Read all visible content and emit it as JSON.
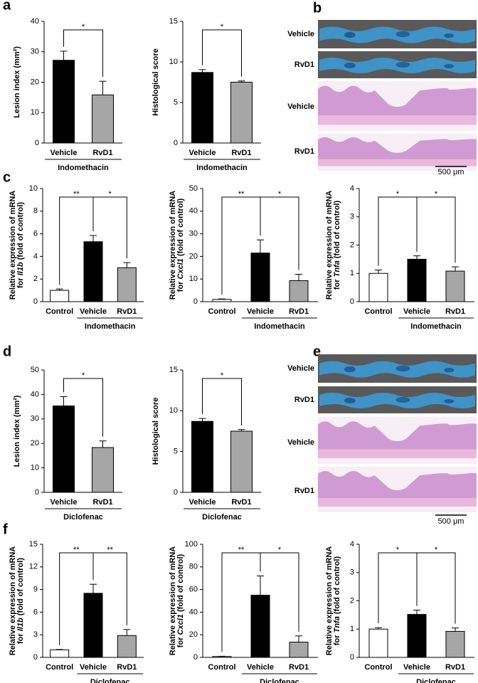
{
  "panel_labels": [
    "a",
    "b",
    "c",
    "d",
    "e",
    "f"
  ],
  "images": [
    {
      "labels": [
        "Vehicle",
        "RvD1",
        "Vehicle",
        "RvD1"
      ],
      "scale_bar": "500 μm"
    },
    {
      "labels": [
        "Vehicle",
        "RvD1",
        "Vehicle",
        "RvD1"
      ],
      "scale_bar": "500 μm"
    }
  ],
  "chart_data": [
    {
      "type": "bar",
      "ylabel": "Lesion index (mm²)",
      "categories": [
        "Vehicle",
        "RvD1"
      ],
      "values": [
        27.2,
        15.8
      ],
      "errors": [
        3.0,
        4.5
      ],
      "colors": [
        "#000000",
        "#a6a6a6"
      ],
      "ylim": [
        0,
        40
      ],
      "yticks": [
        0,
        10,
        20,
        30,
        40
      ],
      "group_label": "Indomethacin",
      "annotations": [
        {
          "between": [
            "Vehicle",
            "RvD1"
          ],
          "text": "*"
        }
      ]
    },
    {
      "type": "bar",
      "ylabel": "Histological score",
      "categories": [
        "Vehicle",
        "RvD1"
      ],
      "values": [
        8.7,
        7.5
      ],
      "errors": [
        0.35,
        0.15
      ],
      "colors": [
        "#000000",
        "#a6a6a6"
      ],
      "ylim": [
        0,
        15
      ],
      "yticks": [
        0,
        5,
        10,
        15
      ],
      "group_label": "Indomethacin",
      "annotations": [
        {
          "between": [
            "Vehicle",
            "RvD1"
          ],
          "text": "*"
        }
      ]
    },
    {
      "type": "bar",
      "ylabel": "Relative expression of  mRNA",
      "ylabel2": [
        "for ",
        "Il1b",
        " (fold of control)"
      ],
      "categories": [
        "Control",
        "Vehicle",
        "RvD1"
      ],
      "values": [
        1.0,
        5.3,
        3.0
      ],
      "errors": [
        0.12,
        0.55,
        0.45
      ],
      "colors": [
        "#ffffff",
        "#000000",
        "#a6a6a6"
      ],
      "ylim": [
        0,
        10
      ],
      "yticks": [
        0,
        2,
        4,
        6,
        8,
        10
      ],
      "group_label": "Indomethacin",
      "annotations": [
        {
          "between": [
            "Control",
            "Vehicle"
          ],
          "text": "**"
        },
        {
          "between": [
            "Vehicle",
            "RvD1"
          ],
          "text": "*"
        }
      ]
    },
    {
      "type": "bar",
      "ylabel": "Relative expression of  mRNA",
      "ylabel2": [
        "for ",
        "Cxcl1",
        " (fold of control)"
      ],
      "categories": [
        "Control",
        "Vehicle",
        "RvD1"
      ],
      "values": [
        1.0,
        21.5,
        9.3
      ],
      "errors": [
        0.2,
        5.8,
        2.8
      ],
      "colors": [
        "#ffffff",
        "#000000",
        "#a6a6a6"
      ],
      "ylim": [
        0,
        50
      ],
      "yticks": [
        0,
        10,
        20,
        30,
        40,
        50
      ],
      "group_label": "Indomethacin",
      "annotations": [
        {
          "between": [
            "Control",
            "Vehicle"
          ],
          "text": "**"
        },
        {
          "between": [
            "Vehicle",
            "RvD1"
          ],
          "text": "*"
        }
      ]
    },
    {
      "type": "bar",
      "ylabel": "Relative expression of  mRNA",
      "ylabel2": [
        "for ",
        "Tnfa",
        " (fold of control)"
      ],
      "categories": [
        "Control",
        "Vehicle",
        "RvD1"
      ],
      "values": [
        1.0,
        1.5,
        1.08
      ],
      "errors": [
        0.12,
        0.12,
        0.15
      ],
      "colors": [
        "#ffffff",
        "#000000",
        "#a6a6a6"
      ],
      "ylim": [
        0,
        4
      ],
      "yticks": [
        0,
        1,
        2,
        3,
        4
      ],
      "group_label": "Indomethacin",
      "annotations": [
        {
          "between": [
            "Control",
            "Vehicle"
          ],
          "text": "*"
        },
        {
          "between": [
            "Vehicle",
            "RvD1"
          ],
          "text": "*"
        }
      ]
    },
    {
      "type": "bar",
      "ylabel": "Lesion index (mm²)",
      "categories": [
        "Vehicle",
        "RvD1"
      ],
      "values": [
        35.3,
        18.3
      ],
      "errors": [
        3.8,
        2.7
      ],
      "colors": [
        "#000000",
        "#a6a6a6"
      ],
      "ylim": [
        0,
        50
      ],
      "yticks": [
        0,
        10,
        20,
        30,
        40,
        50
      ],
      "group_label": "Diclofenac",
      "annotations": [
        {
          "between": [
            "Vehicle",
            "RvD1"
          ],
          "text": "*"
        }
      ]
    },
    {
      "type": "bar",
      "ylabel": "Histological score",
      "categories": [
        "Vehicle",
        "RvD1"
      ],
      "values": [
        8.7,
        7.5
      ],
      "errors": [
        0.35,
        0.2
      ],
      "colors": [
        "#000000",
        "#a6a6a6"
      ],
      "ylim": [
        0,
        15
      ],
      "yticks": [
        0,
        5,
        10,
        15
      ],
      "group_label": "Diclofenac",
      "annotations": [
        {
          "between": [
            "Vehicle",
            "RvD1"
          ],
          "text": "*"
        }
      ]
    },
    {
      "type": "bar",
      "ylabel": "Relative expression of mRNA",
      "ylabel2": [
        "for ",
        "Il1b",
        " (fold of control)"
      ],
      "categories": [
        "Control",
        "Vehicle",
        "RvD1"
      ],
      "values": [
        1.0,
        8.5,
        2.9
      ],
      "errors": [
        0.05,
        1.2,
        0.8
      ],
      "colors": [
        "#ffffff",
        "#000000",
        "#a6a6a6"
      ],
      "ylim": [
        0,
        15
      ],
      "yticks": [
        0,
        3,
        6,
        9,
        12,
        15
      ],
      "group_label": "Diclofenac",
      "annotations": [
        {
          "between": [
            "Control",
            "Vehicle"
          ],
          "text": "**"
        },
        {
          "between": [
            "Vehicle",
            "RvD1"
          ],
          "text": "**"
        }
      ]
    },
    {
      "type": "bar",
      "ylabel": "Relative expression of mRNA",
      "ylabel2": [
        "for ",
        "Cxcl1",
        " (fold of control)"
      ],
      "categories": [
        "Control",
        "Vehicle",
        "RvD1"
      ],
      "values": [
        0.8,
        55,
        13.5
      ],
      "errors": [
        0.2,
        17,
        5.5
      ],
      "colors": [
        "#ffffff",
        "#000000",
        "#a6a6a6"
      ],
      "ylim": [
        0,
        100
      ],
      "yticks": [
        0,
        20,
        40,
        60,
        80,
        100
      ],
      "group_label": "Diclofenac",
      "annotations": [
        {
          "between": [
            "Control",
            "Vehicle"
          ],
          "text": "**"
        },
        {
          "between": [
            "Vehicle",
            "RvD1"
          ],
          "text": "*"
        }
      ]
    },
    {
      "type": "bar",
      "ylabel": "Relative expression of  mRNA",
      "ylabel2": [
        "for ",
        "Tnfa",
        " (fold of control)"
      ],
      "categories": [
        "Control",
        "Vehicle",
        "RvD1"
      ],
      "values": [
        1.0,
        1.52,
        0.92
      ],
      "errors": [
        0.05,
        0.15,
        0.12
      ],
      "colors": [
        "#ffffff",
        "#000000",
        "#a6a6a6"
      ],
      "ylim": [
        0,
        4
      ],
      "yticks": [
        0,
        1,
        2,
        3,
        4
      ],
      "group_label": "Diclofenac",
      "annotations": [
        {
          "between": [
            "Control",
            "Vehicle"
          ],
          "text": "*"
        },
        {
          "between": [
            "Vehicle",
            "RvD1"
          ],
          "text": "*"
        }
      ]
    }
  ]
}
